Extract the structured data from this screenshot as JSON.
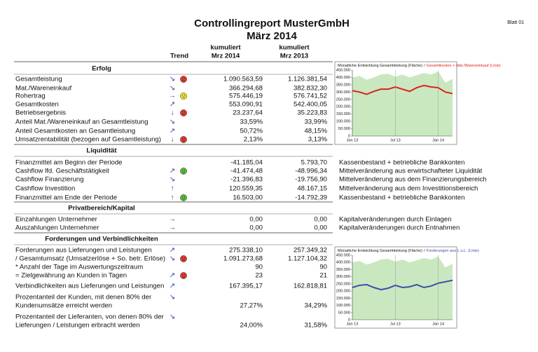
{
  "header": {
    "title": "Controllingreport MusterGmbH",
    "subtitle": "März 2014",
    "sheet": "Blatt 01",
    "columns": {
      "trend": "Trend",
      "current": [
        "kumuliert",
        "Mrz 2014"
      ],
      "previous": [
        "kumuliert",
        "Mrz 2013"
      ]
    }
  },
  "sections": [
    {
      "title": "Erfolg",
      "rows": [
        {
          "label": [
            "Gesamtleistung"
          ],
          "trend": "↘",
          "current": "1.090.563,59",
          "previous": "1.126.381,54"
        },
        {
          "label": [
            "Mat./Wareneinkauf"
          ],
          "trend": "↘",
          "current": "366.294,68",
          "previous": "382.832,30"
        },
        {
          "label": [
            "Rohertrag"
          ],
          "trend": "→",
          "current": "575.446,19",
          "previous": "576.741,52"
        },
        {
          "label": [
            "Gesamtkosten"
          ],
          "trend": "↗",
          "current": "553.090,91",
          "previous": "542.400,05"
        },
        {
          "label": [
            "Betriebsergebnis"
          ],
          "trend": "↓",
          "current": "23.237,64",
          "previous": "35.223,83"
        },
        {
          "label": [
            "Anteil Mat./Wareneinkauf an Gesamtleistung"
          ],
          "trend": "↘",
          "current": "33,59%",
          "previous": "33,99%"
        },
        {
          "label": [
            "Anteil Gesamtkosten an Gesamtleistung"
          ],
          "trend": "↗",
          "current": "50,72%",
          "previous": "48,15%"
        },
        {
          "label": [
            "Umsatzrentabilität (bezogen auf Gesamtleistung)"
          ],
          "trend": "↓",
          "current": "2,13%",
          "previous": "3,13%"
        }
      ]
    },
    {
      "title": "Liquidität",
      "rows": [
        {
          "label": [
            "Finanzmittel am Beginn der Periode"
          ],
          "current": "-41.185,04",
          "previous": "5.793,70",
          "note": "Kassenbestand + betriebliche Bankkonten"
        },
        {
          "label": [
            "Cashflow lfd. Geschäftstätigkeit"
          ],
          "trend": "↗",
          "current": "-41.474,48",
          "previous": "-48.996,34",
          "note": "Mittelveränderung aus erwirtschafteter Liquidität"
        },
        {
          "label": [
            "Cashflow Finanzierung"
          ],
          "trend": "↘",
          "current": "-21.396,83",
          "previous": "-19.756,90",
          "note": "Mittelveränderung aus dem Finanzierungsbereich"
        },
        {
          "label": [
            "Cashflow Investition"
          ],
          "trend": "↑",
          "current": "120.559,35",
          "previous": "48.167,15",
          "note": "Mittelveränderung aus dem Investitionsbereich"
        },
        {
          "label": [
            "Finanzmittel am Ende der Periode"
          ],
          "trend": "↑",
          "current": "16.503,00",
          "previous": "-14.792,39",
          "note": "Kassenbestand + betriebliche Bankkonten"
        }
      ]
    },
    {
      "title": "Privatbereich/Kapital",
      "rows": [
        {
          "label": [
            "Einzahlungen Unternehmer"
          ],
          "trend": "→",
          "current": "0,00",
          "previous": "0,00",
          "note": "Kapitalveränderungen durch Einlagen"
        },
        {
          "label": [
            "Auszahlungen Unternehmer"
          ],
          "trend": "→",
          "current": "0,00",
          "previous": "0,00",
          "note": "Kapitalveränderungen durch Entnahmen"
        }
      ]
    },
    {
      "title": "Forderungen und Verbindlichkeiten",
      "rows": [
        {
          "label": [
            "Forderungen aus Lieferungen und Leistungen"
          ],
          "trend": "↗",
          "current": "275.338,10",
          "previous": "257.349,32"
        },
        {
          "label": [
            "/ Gesamtumsatz (Umsatzerlöse + So. betr. Erlöse)"
          ],
          "trend": "↘",
          "current": "1.091.273,68",
          "previous": "1.127.104,32"
        },
        {
          "label": [
            "* Anzahl der Tage im Auswertungszeitraum"
          ],
          "current": "90",
          "previous": "90"
        },
        {
          "label": [
            "= Zielgewährung an Kunden in Tagen"
          ],
          "trend": "↗",
          "current": "23",
          "previous": "21"
        },
        {
          "label": [
            "Verbindlichkeiten aus Lieferungen und Leistungen"
          ],
          "trend": "↗",
          "current": "167.395,17",
          "previous": "162.818,81"
        },
        {
          "label": [
            "Prozentanteil der Kunden, mit denen 80% der",
            "Kundenumsätze erreicht werden"
          ],
          "trend": "↘",
          "current": "27,27%",
          "previous": "34,29%"
        },
        {
          "label": [
            "Prozentanteil der Lieferanten, von denen 80% der",
            "Lieferungen / Leistungen erbracht werden"
          ],
          "trend": "↘",
          "current": "24,00%",
          "previous": "31,58%"
        }
      ]
    }
  ],
  "charts": [
    {
      "type": "area_line",
      "legend_separator": "/",
      "categories": [
        "Jan 13",
        null,
        null,
        null,
        null,
        null,
        "Jul 13",
        null,
        null,
        null,
        null,
        null,
        "Jan 14",
        null,
        null
      ],
      "series": [
        {
          "name": "Monatliche Entwicklung Gesamtleistung (Fläche)",
          "kind": "area",
          "color": "#c9e8c0",
          "values": [
            400000,
            410000,
            385000,
            400000,
            420000,
            425000,
            405000,
            420000,
            400000,
            415000,
            430000,
            420000,
            440000,
            365000,
            390000
          ]
        },
        {
          "name": "Gesamtkosten + Mat./Wareneinkauf (Linie)",
          "kind": "line",
          "color": "#e0201b",
          "values": [
            310000,
            300000,
            285000,
            305000,
            320000,
            320000,
            335000,
            320000,
            305000,
            330000,
            345000,
            335000,
            330000,
            300000,
            290000
          ]
        }
      ],
      "ylim": [
        0,
        450000
      ],
      "yticks": [
        0,
        {
          "value": 50000,
          "label": "50.000"
        },
        {
          "value": 100000,
          "label": "100.000"
        },
        {
          "value": 150000,
          "label": "150.000"
        },
        {
          "value": 200000,
          "label": "200.000"
        },
        {
          "value": 250000,
          "label": "250.000"
        },
        {
          "value": 300000,
          "label": "300.000"
        },
        {
          "value": 350000,
          "label": "350.000"
        },
        {
          "value": 400000,
          "label": "400.000"
        },
        {
          "value": 450000,
          "label": "450.000"
        }
      ]
    },
    {
      "type": "area_line",
      "legend_separator": "/",
      "categories": [
        "Jan 13",
        null,
        null,
        null,
        null,
        null,
        "Jul 13",
        null,
        null,
        null,
        null,
        null,
        "Jan 14",
        null,
        null
      ],
      "series": [
        {
          "name": "Monatliche Entwicklung Gesamtleistung (Fläche)",
          "kind": "area",
          "color": "#c9e8c0",
          "values": [
            400000,
            410000,
            385000,
            400000,
            420000,
            425000,
            405000,
            420000,
            400000,
            415000,
            430000,
            420000,
            440000,
            365000,
            390000
          ]
        },
        {
          "name": "Forderungen aus L.u.L. (Linie)",
          "kind": "line",
          "color": "#3a4fa8",
          "values": [
            225000,
            240000,
            245000,
            225000,
            210000,
            220000,
            240000,
            225000,
            230000,
            245000,
            225000,
            235000,
            255000,
            265000,
            275000
          ]
        }
      ],
      "ylim": [
        0,
        450000
      ],
      "yticks": [
        0,
        {
          "value": 50000,
          "label": "50.000"
        },
        {
          "value": 100000,
          "label": "100.000"
        },
        {
          "value": 150000,
          "label": "150.000"
        },
        {
          "value": 200000,
          "label": "200.000"
        },
        {
          "value": 250000,
          "label": "250.000"
        },
        {
          "value": 300000,
          "label": "300.000"
        },
        {
          "value": 350000,
          "label": "350.000"
        },
        {
          "value": 400000,
          "label": "400.000"
        },
        {
          "value": 450000,
          "label": "450.000"
        }
      ]
    }
  ]
}
